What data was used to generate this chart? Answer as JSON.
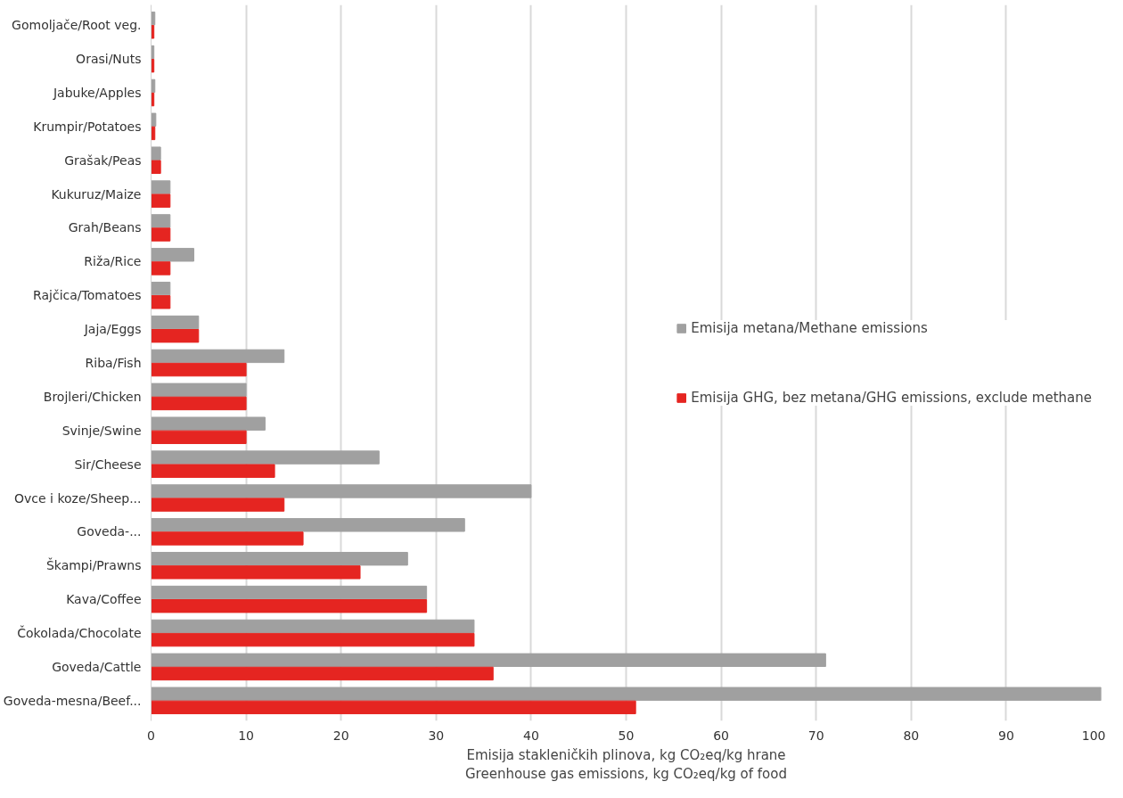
{
  "chart_data": {
    "type": "bar",
    "orientation": "horizontal",
    "xlabel": "Emisija stakleničkih plinova, kg CO₂eq/kg hrane\nGreenhouse gas emissions, kg CO₂eq/kg of food",
    "categories": [
      "Gomoljače/Root veg.",
      "Orasi/Nuts",
      "Jabuke/Apples",
      "Krumpir/Potatoes",
      "Grašak/Peas",
      "Kukuruz/Maize",
      "Grah/Beans",
      "Riža/Rice",
      "Rajčica/Tomatoes",
      "Jaja/Eggs",
      "Riba/Fish",
      "Brojleri/Chicken",
      "Svinje/Swine",
      "Sir/Cheese",
      "Ovce i koze/Sheep...",
      "Goveda-...",
      "Škampi/Prawns",
      "Kava/Coffee",
      "Čokolada/Chocolate",
      "Goveda/Cattle",
      "Goveda-mesna/Beef..."
    ],
    "series": [
      {
        "name": "Emisija metana/Methane emissions",
        "color": "#a0a0a0",
        "values": [
          0.4,
          0.3,
          0.4,
          0.5,
          1,
          2,
          2,
          4.5,
          2,
          5,
          14,
          10,
          12,
          24,
          40,
          33,
          27,
          29,
          34,
          71,
          100
        ]
      },
      {
        "name": "Emisija GHG, bez metana/GHG emissions, exclude methane",
        "color": "#e52521",
        "values": [
          0.3,
          0.3,
          0.3,
          0.4,
          1,
          2,
          2,
          2,
          2,
          5,
          10,
          10,
          10,
          13,
          14,
          16,
          22,
          29,
          34,
          36,
          51
        ]
      }
    ],
    "xlim": [
      0,
      100
    ],
    "xticks": [
      0,
      10,
      20,
      30,
      40,
      50,
      60,
      70,
      80,
      90,
      100
    ],
    "grid": "x",
    "legend": "right"
  }
}
